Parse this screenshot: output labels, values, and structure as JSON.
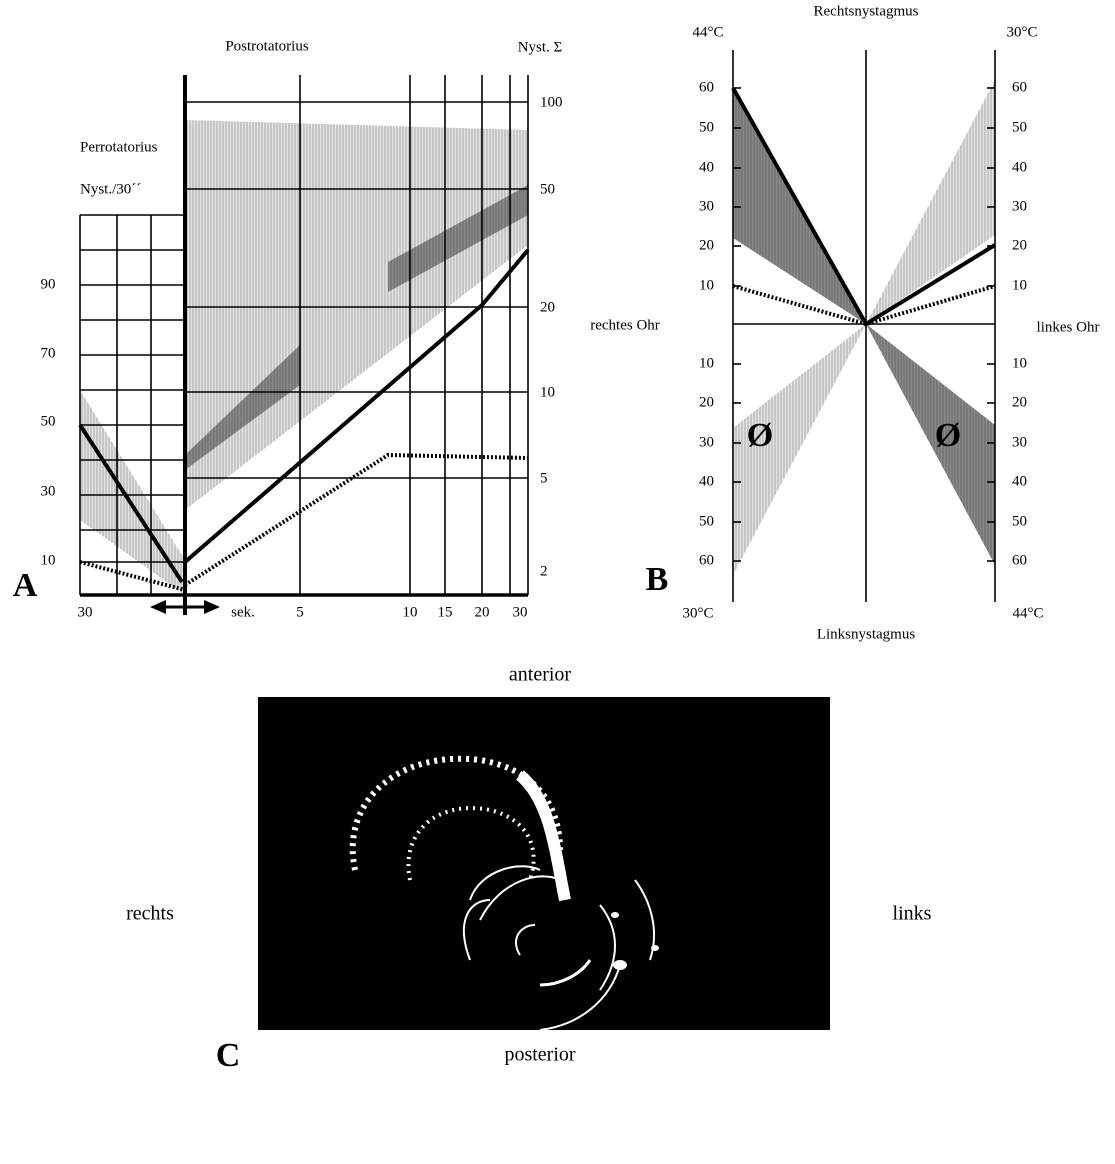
{
  "panel_a": {
    "label": "A",
    "title": "Postrotatorius",
    "right_axis_title": "Nyst. Σ",
    "left_title": "Perrotatorius",
    "left_axis_title": "Nyst./30´´",
    "left_ticks": [
      90,
      70,
      50,
      30,
      10
    ],
    "right_ticks": [
      100,
      50,
      20,
      10,
      5,
      2
    ],
    "x_ticks": [
      30,
      "sek.",
      5,
      10,
      15,
      20,
      30
    ]
  },
  "panel_b": {
    "label": "B",
    "top_title": "Rechtsnystagmus",
    "bottom_title": "Linksnystagmus",
    "top_left_temp": "44°C",
    "top_right_temp": "30°C",
    "bottom_left_temp": "30°C",
    "bottom_right_temp": "44°C",
    "left_side": "rechtes Ohr",
    "right_side": "linkes Ohr",
    "upper_ticks": [
      60,
      50,
      40,
      30,
      20,
      10
    ],
    "lower_ticks": [
      10,
      20,
      30,
      40,
      50,
      60
    ],
    "marks": [
      "Ø",
      "Ø"
    ]
  },
  "panel_c": {
    "label": "C",
    "top": "anterior",
    "bottom": "posterior",
    "left": "rechts",
    "right": "links"
  }
}
